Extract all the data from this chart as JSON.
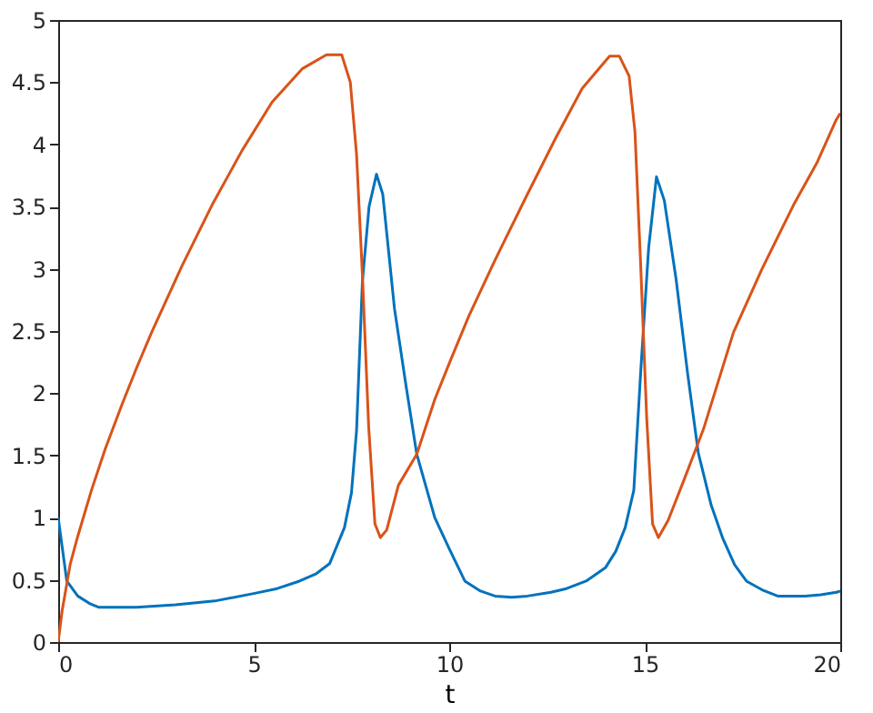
{
  "chart_data": {
    "type": "line",
    "xlabel": "t",
    "xlim": [
      0,
      20
    ],
    "ylim": [
      0,
      5
    ],
    "xticks": [
      0,
      5,
      10,
      15,
      20
    ],
    "yticks": [
      0,
      0.5,
      1,
      1.5,
      2,
      2.5,
      3,
      3.5,
      4,
      4.5,
      5
    ],
    "grid": false,
    "legend": false,
    "marker": "none",
    "line_style": "solid",
    "series": [
      {
        "color": "#0072bd",
        "x": [
          0,
          0.22,
          0.5,
          0.8,
          1.03,
          1.5,
          2,
          3,
          4,
          5,
          5.6,
          6.17,
          6.6,
          6.94,
          7.32,
          7.5,
          7.63,
          7.78,
          7.95,
          8.14,
          8.3,
          8.6,
          8.9,
          9.17,
          9.63,
          10,
          10.4,
          10.8,
          11.17,
          11.6,
          12,
          12.6,
          13,
          13.5,
          14,
          14.26,
          14.5,
          14.72,
          14.9,
          15.1,
          15.3,
          15.5,
          15.8,
          16.1,
          16.37,
          16.7,
          17,
          17.3,
          17.6,
          18,
          18.4,
          19.1,
          19.5,
          19.9,
          20
        ],
        "values": [
          1,
          0.49,
          0.37,
          0.31,
          0.28,
          0.28,
          0.28,
          0.3,
          0.33,
          0.39,
          0.43,
          0.49,
          0.55,
          0.63,
          0.92,
          1.2,
          1.7,
          2.9,
          3.5,
          3.76,
          3.6,
          2.68,
          2.05,
          1.51,
          1.0,
          0.75,
          0.49,
          0.41,
          0.37,
          0.36,
          0.37,
          0.4,
          0.43,
          0.49,
          0.6,
          0.73,
          0.92,
          1.22,
          2.19,
          3.17,
          3.74,
          3.55,
          2.92,
          2.15,
          1.52,
          1.1,
          0.83,
          0.62,
          0.49,
          0.42,
          0.37,
          0.37,
          0.38,
          0.4,
          0.41
        ]
      },
      {
        "color": "#d95319",
        "x": [
          0,
          0.1,
          0.31,
          0.5,
          0.85,
          1.2,
          1.62,
          2,
          2.39,
          3.16,
          3.93,
          4.7,
          5.47,
          6.25,
          6.86,
          7.1,
          7.25,
          7.47,
          7.63,
          7.78,
          7.94,
          8.1,
          8.24,
          8.4,
          8.7,
          9.17,
          9.63,
          10,
          10.5,
          11.17,
          12,
          12.72,
          13.4,
          14.1,
          14.35,
          14.6,
          14.75,
          14.9,
          15.05,
          15.2,
          15.35,
          15.6,
          16,
          16.5,
          17.27,
          18,
          18.8,
          19.4,
          19.9,
          20
        ],
        "values": [
          0,
          0.25,
          0.63,
          0.85,
          1.22,
          1.55,
          1.9,
          2.2,
          2.49,
          3.02,
          3.51,
          3.95,
          4.34,
          4.61,
          4.72,
          4.72,
          4.72,
          4.5,
          3.92,
          2.95,
          1.73,
          0.95,
          0.84,
          0.9,
          1.26,
          1.51,
          1.95,
          2.24,
          2.62,
          3.07,
          3.6,
          4.05,
          4.45,
          4.71,
          4.71,
          4.55,
          4.1,
          3.0,
          1.8,
          0.95,
          0.84,
          0.98,
          1.3,
          1.71,
          2.49,
          3.0,
          3.51,
          3.85,
          4.2,
          4.25
        ]
      }
    ]
  }
}
